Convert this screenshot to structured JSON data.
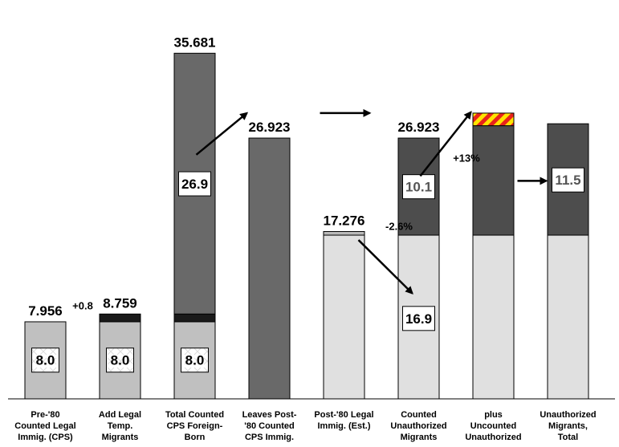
{
  "chart_data": {
    "type": "bar",
    "categories": [
      [
        "Pre-'80",
        "Counted Legal",
        "Immig. (CPS)"
      ],
      [
        "Add Legal",
        "Temp.",
        "Migrants"
      ],
      [
        "Total Counted",
        "CPS Foreign-",
        "Born"
      ],
      [
        "Leaves Post-",
        "'80 Counted",
        "CPS Immig."
      ],
      [
        "Post-'80 Legal",
        "Immig. (Est.)"
      ],
      [
        "Counted",
        "Unauthorized",
        "Migrants"
      ],
      [
        "plus",
        "Uncounted",
        "Unauthorized"
      ],
      [
        "Unauthorized",
        "Migrants,",
        "Total"
      ]
    ],
    "ylim": [
      0,
      38
    ],
    "bars": [
      {
        "segments": [
          {
            "start": 0,
            "end": 7.956,
            "fill": "#c0c0c0"
          }
        ],
        "top_label": "7.956",
        "box_label": "8.0",
        "box_at": 4.0,
        "box_style": "pattern"
      },
      {
        "segments": [
          {
            "start": 0,
            "end": 7.956,
            "fill": "#c0c0c0"
          },
          {
            "start": 7.956,
            "end": 8.759,
            "fill": "#1a1a1a"
          }
        ],
        "top_label": "8.759",
        "box_label": "8.0",
        "box_at": 4.0,
        "box_style": "pattern"
      },
      {
        "segments": [
          {
            "start": 0,
            "end": 7.956,
            "fill": "#c0c0c0"
          },
          {
            "start": 7.956,
            "end": 8.759,
            "fill": "#1a1a1a"
          },
          {
            "start": 8.759,
            "end": 35.681,
            "fill": "#696969"
          }
        ],
        "top_label": "35.681",
        "box_label": "8.0",
        "box_at": 4.0,
        "box_style": "pattern",
        "box2_label": "26.9",
        "box2_at": 22.2
      },
      {
        "segments": [
          {
            "start": 0,
            "end": 26.923,
            "fill": "#696969"
          }
        ],
        "top_label": "26.923"
      },
      {
        "segments": [
          {
            "start": 0,
            "end": 16.9,
            "fill": "#e0e0e0"
          },
          {
            "start": 16.9,
            "end": 17.276,
            "fill": "#b8b8b8"
          }
        ],
        "top_label": "17.276"
      },
      {
        "segments": [
          {
            "start": 0,
            "end": 16.9,
            "fill": "#e0e0e0"
          },
          {
            "start": 16.9,
            "end": 26.923,
            "fill": "#4d4d4d"
          }
        ],
        "top_label": "26.923",
        "box_label": "10.1",
        "box_at": 21.9,
        "box_style": "grey-text",
        "box2_label": "16.9",
        "box2_at": 8.3
      },
      {
        "segments": [
          {
            "start": 0,
            "end": 16.9,
            "fill": "#e0e0e0"
          },
          {
            "start": 16.9,
            "end": 28.2,
            "fill": "#4d4d4d"
          },
          {
            "start": 28.2,
            "end": 29.5,
            "fill": "hatch"
          }
        ]
      },
      {
        "segments": [
          {
            "start": 0,
            "end": 16.9,
            "fill": "#e0e0e0"
          },
          {
            "start": 16.9,
            "end": 28.4,
            "fill": "#4d4d4d"
          }
        ],
        "box_label": "11.5",
        "box_at": 22.6,
        "box_style": "grey-text"
      }
    ],
    "annotations": {
      "add_legal_temp": "+0.8",
      "decline": "-2.6%",
      "undercount": "+13%"
    },
    "colors": {
      "pre80_legal": "#c0c0c0",
      "legal_temp": "#1a1a1a",
      "post80_counted": "#696969",
      "unauthorized": "#4d4d4d",
      "post80_legal": "#e0e0e0",
      "hatch_red": "#e8231b",
      "hatch_yellow": "#ffe400"
    }
  }
}
